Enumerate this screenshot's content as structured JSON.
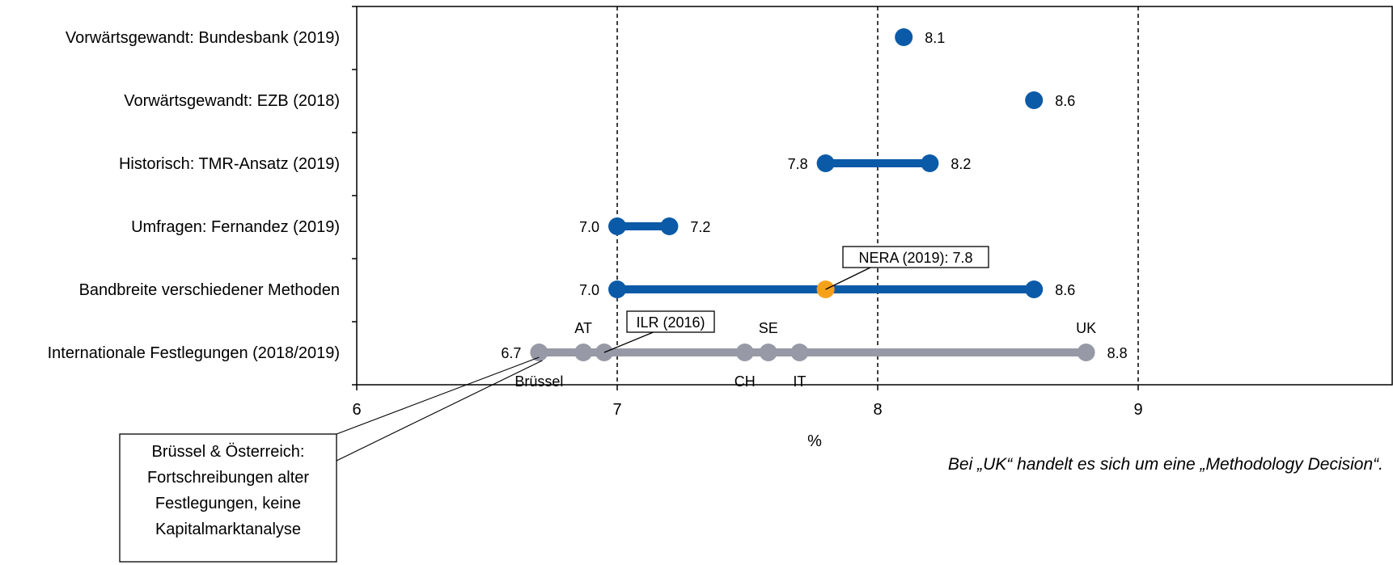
{
  "chart_data": {
    "type": "dumbbell",
    "xlabel": "%",
    "xlim": [
      6,
      9.5
    ],
    "xticks": [
      6,
      7,
      8,
      9
    ],
    "gridlines": [
      7,
      8,
      9
    ],
    "grid": "vertical dashed at 7, 8, 9",
    "categories": [
      "Vorwärtsgewandt: Bundesbank (2019)",
      "Vorwärtsgewandt: EZB (2018)",
      "Historisch: TMR-Ansatz (2019)",
      "Umfragen: Fernandez (2019)",
      "Bandbreite verschiedener Methoden",
      "Internationale Festlegungen (2018/2019)"
    ],
    "rows": [
      {
        "low": 8.1,
        "high": null,
        "low_label": "",
        "high_label": "8.1"
      },
      {
        "low": 8.6,
        "high": null,
        "low_label": "",
        "high_label": "8.6"
      },
      {
        "low": 7.8,
        "high": 8.2,
        "low_label": "7.8",
        "high_label": "8.2"
      },
      {
        "low": 7.0,
        "high": 7.2,
        "low_label": "7.0",
        "high_label": "7.2"
      },
      {
        "low": 7.0,
        "high": 8.6,
        "low_label": "7.0",
        "high_label": "8.6"
      },
      {
        "low": 6.7,
        "high": 8.8,
        "low_label": "6.7",
        "high_label": "8.8"
      }
    ],
    "highlight": {
      "value": 7.8,
      "label": "NERA (2019): 7.8",
      "color": "#f7a11a"
    },
    "international_points": [
      {
        "value": 6.7,
        "label": "Brüssel",
        "side": "below"
      },
      {
        "value": 6.87,
        "label": "AT",
        "side": "above"
      },
      {
        "value": 6.95,
        "label": "",
        "side": "none"
      },
      {
        "value": 7.49,
        "label": "CH",
        "side": "below"
      },
      {
        "value": 7.58,
        "label": "SE",
        "side": "above"
      },
      {
        "value": 7.7,
        "label": "IT",
        "side": "below"
      },
      {
        "value": 8.8,
        "label": "UK",
        "side": "above"
      }
    ],
    "callout_ilr": {
      "label": "ILR (2016)",
      "value": 6.95
    },
    "callout_bruessel": {
      "lines": [
        "Brüssel & Österreich:",
        "Fortschreibungen alter",
        "Festlegungen, keine",
        "Kapitalmarktanalyse"
      ]
    },
    "footnote": "Bei „UK“ handelt es sich um eine „Methodology Decision“.",
    "colors": {
      "series": "#0a5aa8",
      "international": "#9799a6",
      "highlight": "#f7a11a",
      "grid": "#000000"
    }
  }
}
